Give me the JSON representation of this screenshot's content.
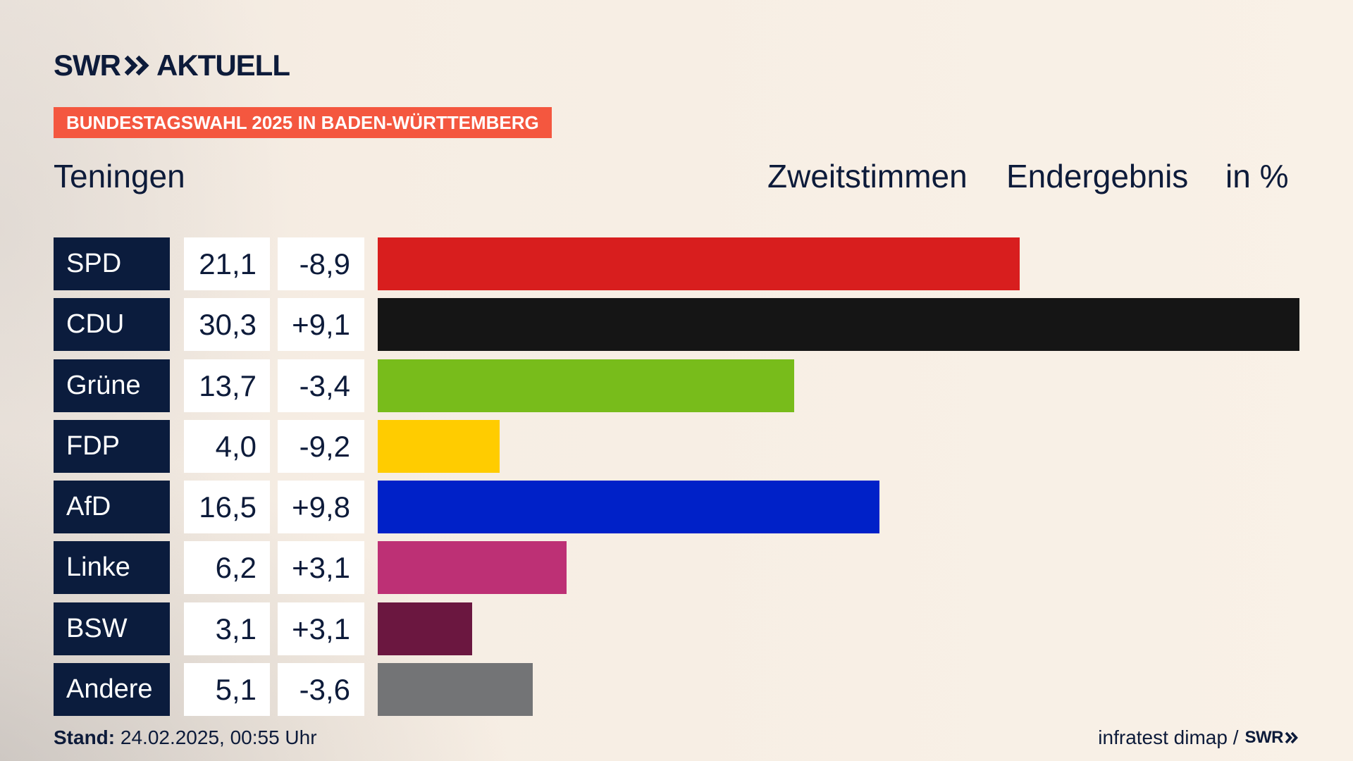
{
  "header": {
    "logo_swr": "SWR",
    "logo_aktuell": "AKTUELL",
    "banner": "BUNDESTAGSWAHL 2025 IN BADEN-WÜRTTEMBERG"
  },
  "title": {
    "place": "Teningen",
    "vote_type": "Zweitstimmen",
    "result_type": "Endergebnis",
    "unit": "in %"
  },
  "chart_data": {
    "type": "bar",
    "orientation": "horizontal",
    "categories": [
      "SPD",
      "CDU",
      "Grüne",
      "FDP",
      "AfD",
      "Linke",
      "BSW",
      "Andere"
    ],
    "values": [
      21.1,
      30.3,
      13.7,
      4.0,
      16.5,
      6.2,
      3.1,
      5.1
    ],
    "diffs": [
      -8.9,
      9.1,
      -3.4,
      -9.2,
      9.8,
      3.1,
      3.1,
      -3.6
    ],
    "colors": [
      "#d81e1e",
      "#151515",
      "#78bc1b",
      "#ffcc00",
      "#0021c8",
      "#bd3075",
      "#6b1740",
      "#737476"
    ],
    "grid": false,
    "legend": "none"
  },
  "footer": {
    "stand_label": "Stand:",
    "stand_value": "24.02.2025, 00:55 Uhr",
    "source": "infratest dimap /",
    "source_logo": "SWR"
  },
  "icons": {
    "logo_mark": "double-chevron-icon"
  },
  "colors": {
    "banner": "#f4573f",
    "label_box": "#0b1c3d",
    "text": "#0d1b3a"
  }
}
